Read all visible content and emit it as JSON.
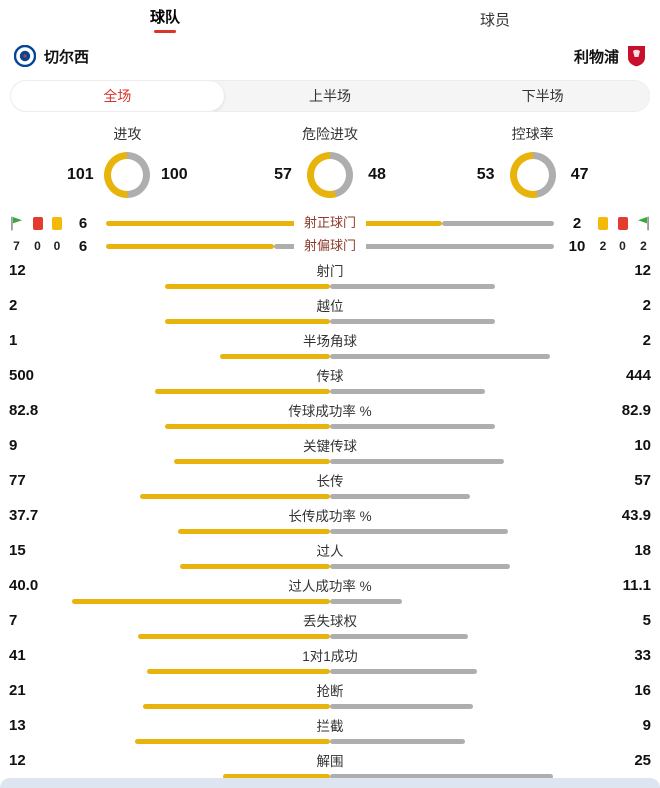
{
  "header_tabs": [
    {
      "label": "球队",
      "active": true
    },
    {
      "label": "球员",
      "active": false
    }
  ],
  "teams": {
    "home": "切尔西",
    "away": "利物浦"
  },
  "period_tabs": [
    {
      "label": "全场",
      "active": true
    },
    {
      "label": "上半场",
      "active": false
    },
    {
      "label": "下半场",
      "active": false
    }
  ],
  "colors": {
    "home_bar": "#e8b30b",
    "away_bar": "#aeaeae",
    "accent_red": "#d8352c",
    "shot_label_text": "#8c3b2b",
    "card_red": "#e23b30",
    "card_yellow": "#f5b90a",
    "flag_green": "#39a93a",
    "bottom_strip": "#dde5f1"
  },
  "chart_data": {
    "type": "comparison",
    "home_team": "切尔西",
    "away_team": "利物浦",
    "donuts": [
      {
        "label": "进攻",
        "home": 101,
        "away": 100
      },
      {
        "label": "危险进攻",
        "home": 57,
        "away": 48
      },
      {
        "label": "控球率",
        "home": 53,
        "away": 47
      }
    ],
    "shot_bars": [
      {
        "label": "射正球门",
        "home": "6",
        "away": "2"
      },
      {
        "label": "射偏球门",
        "home": "6",
        "away": "10"
      }
    ],
    "discipline": {
      "home": {
        "corners": "7",
        "red_cards": "0",
        "yellow_cards": "0"
      },
      "away": {
        "yellow_cards": "2",
        "red_cards": "0",
        "corners": "2"
      }
    },
    "stats": [
      {
        "label": "射门",
        "home": "12",
        "away": "12"
      },
      {
        "label": "越位",
        "home": "2",
        "away": "2"
      },
      {
        "label": "半场角球",
        "home": "1",
        "away": "2"
      },
      {
        "label": "传球",
        "home": "500",
        "away": "444"
      },
      {
        "label": "传球成功率 %",
        "home": "82.8",
        "away": "82.9"
      },
      {
        "label": "关键传球",
        "home": "9",
        "away": "10"
      },
      {
        "label": "长传",
        "home": "77",
        "away": "57"
      },
      {
        "label": "长传成功率 %",
        "home": "37.7",
        "away": "43.9"
      },
      {
        "label": "过人",
        "home": "15",
        "away": "18"
      },
      {
        "label": "过人成功率 %",
        "home": "40.0",
        "away": "11.1"
      },
      {
        "label": "丢失球权",
        "home": "7",
        "away": "5"
      },
      {
        "label": "1对1成功",
        "home": "41",
        "away": "33"
      },
      {
        "label": "抢断",
        "home": "21",
        "away": "16"
      },
      {
        "label": "拦截",
        "home": "13",
        "away": "9"
      },
      {
        "label": "解围",
        "home": "12",
        "away": "25"
      }
    ]
  }
}
